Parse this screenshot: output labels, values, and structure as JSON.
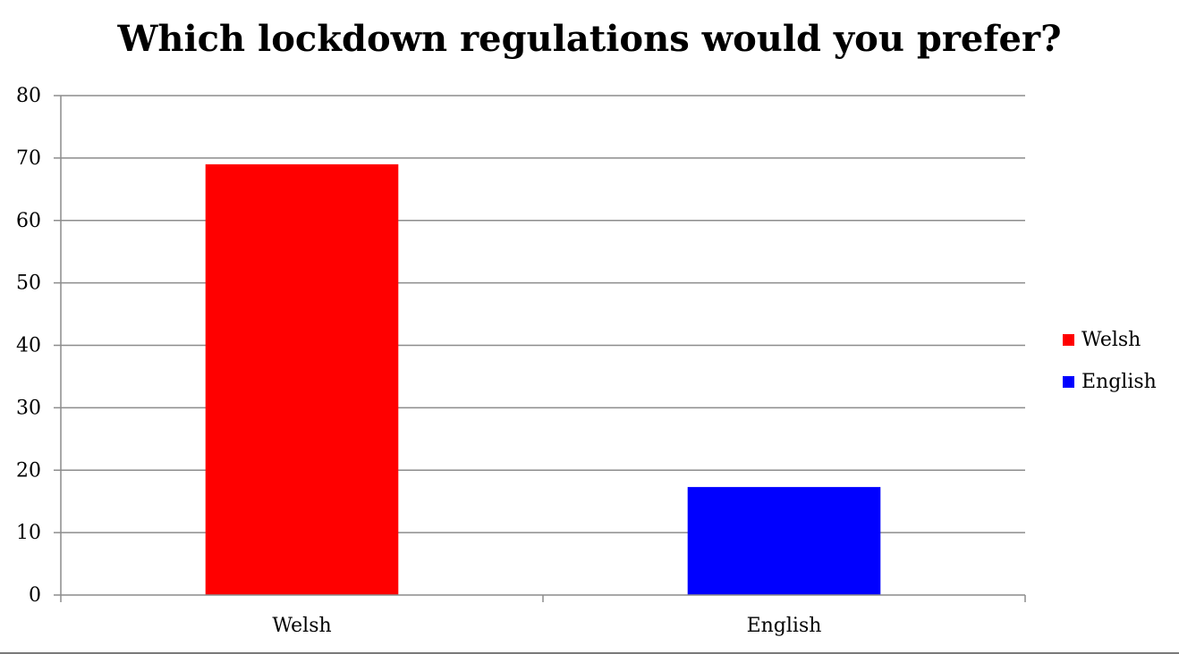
{
  "chart_data": {
    "type": "bar",
    "title": "Which lockdown regulations would you prefer?",
    "xlabel": "",
    "ylabel": "",
    "categories": [
      "Welsh",
      "English"
    ],
    "values": [
      69,
      17.3
    ],
    "colors": [
      "#ff0000",
      "#0000ff"
    ],
    "ylim": [
      0,
      80
    ],
    "yticks": [
      0,
      10,
      20,
      30,
      40,
      50,
      60,
      70,
      80
    ],
    "grid": true,
    "legend": {
      "placement": "right",
      "entries": [
        {
          "label": "Welsh",
          "color": "#ff0000"
        },
        {
          "label": "English",
          "color": "#0000ff"
        }
      ]
    }
  }
}
